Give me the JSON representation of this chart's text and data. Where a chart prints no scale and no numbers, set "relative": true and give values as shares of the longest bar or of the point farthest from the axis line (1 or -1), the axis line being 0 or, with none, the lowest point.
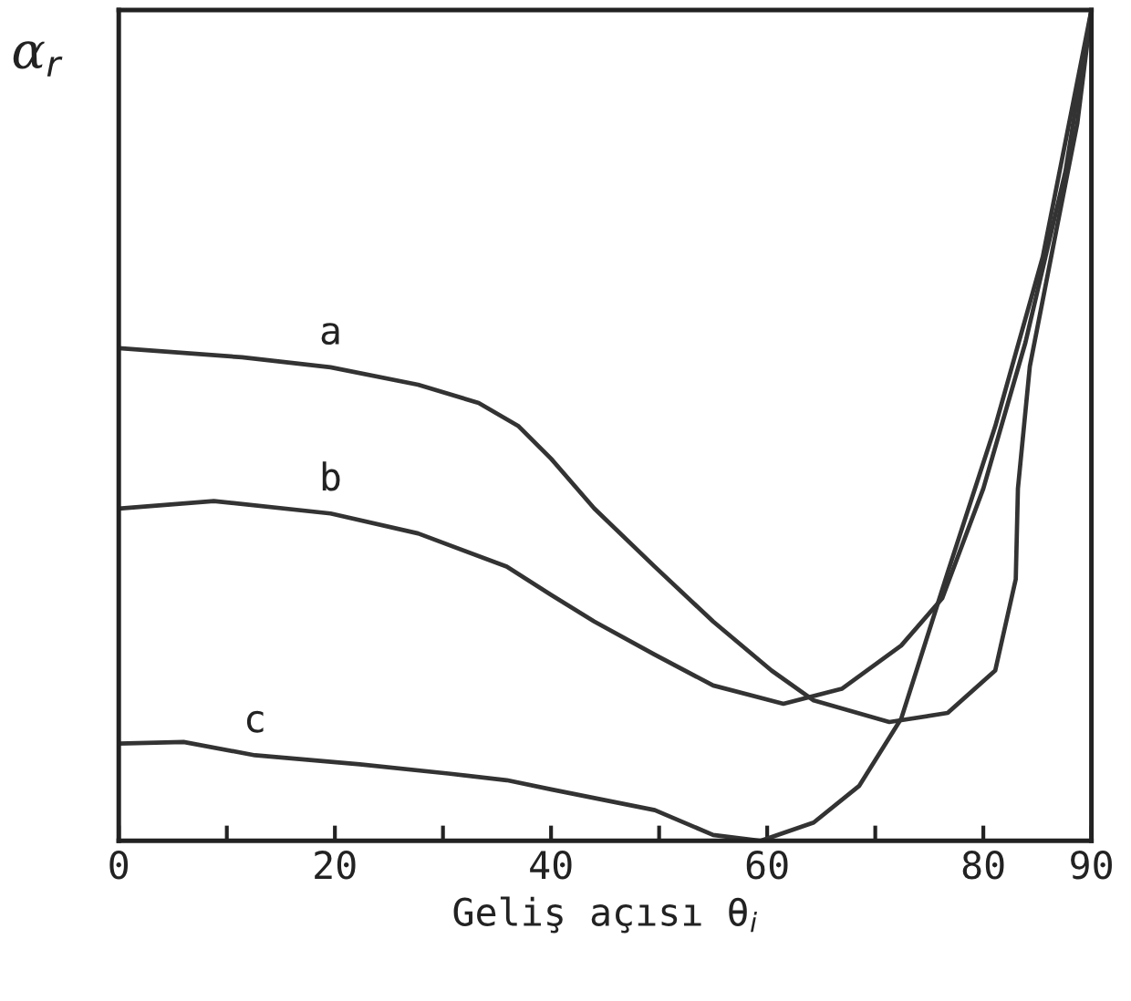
{
  "chart_data": {
    "type": "line",
    "relative": true,
    "ylabel": "α$_{r}$",
    "xlabel": "Geliş açısı θ$_{i}$",
    "xlim": [
      0,
      90
    ],
    "xticks": [
      0,
      {
        "value": 10,
        "label": null
      },
      20,
      {
        "value": 30,
        "label": null
      },
      40,
      {
        "value": 50,
        "label": null
      },
      60,
      {
        "value": 70,
        "label": null
      },
      80,
      90
    ],
    "series": [
      {
        "name": "a",
        "color": "#333333",
        "x": [
          0,
          11.4,
          19.6,
          27.7,
          33.3,
          37,
          40,
          44,
          49.6,
          55,
          60.4,
          64.3,
          71.3,
          76.7,
          81.1,
          83,
          83.2,
          84.3,
          86.5,
          88.7,
          90
        ],
        "values": [
          0.593,
          0.582,
          0.57,
          0.549,
          0.527,
          0.499,
          0.46,
          0.4,
          0.33,
          0.264,
          0.205,
          0.169,
          0.143,
          0.154,
          0.205,
          0.315,
          0.424,
          0.571,
          0.718,
          0.864,
          1
        ]
      },
      {
        "name": "b",
        "color": "#333333",
        "x": [
          0,
          8.8,
          19.6,
          27.7,
          35.9,
          40,
          44,
          49.6,
          55,
          61.5,
          66.9,
          72.4,
          76.2,
          80,
          83.9,
          87.6,
          90
        ],
        "values": [
          0.4,
          0.409,
          0.394,
          0.37,
          0.33,
          0.296,
          0.264,
          0.224,
          0.187,
          0.165,
          0.183,
          0.235,
          0.292,
          0.424,
          0.6,
          0.806,
          1
        ]
      },
      {
        "name": "c",
        "color": "#333333",
        "x": [
          0,
          6,
          12.6,
          22.3,
          30.5,
          35.9,
          40,
          49.6,
          55,
          59.4,
          64.3,
          68.5,
          72.4,
          76.7,
          81.1,
          85.5,
          90
        ],
        "values": [
          0.117,
          0.119,
          0.103,
          0.092,
          0.081,
          0.073,
          0.062,
          0.037,
          0.007,
          0,
          0.022,
          0.066,
          0.147,
          0.323,
          0.499,
          0.703,
          1
        ]
      }
    ]
  }
}
